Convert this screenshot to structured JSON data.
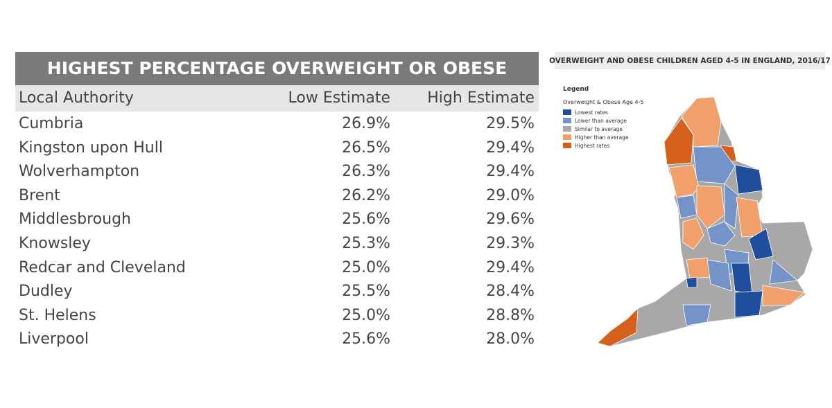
{
  "table": {
    "title": "HIGHEST PERCENTAGE OVERWEIGHT OR OBESE",
    "header": [
      "Local Authority",
      "Low Estimate",
      "High Estimate"
    ],
    "rows": [
      [
        "Cumbria",
        "26.9%",
        "29.5%"
      ],
      [
        "Kingston upon Hull",
        "26.5%",
        "29.4%"
      ],
      [
        "Wolverhampton",
        "26.3%",
        "29.4%"
      ],
      [
        "Brent",
        "26.2%",
        "29.0%"
      ],
      [
        "Middlesbrough",
        "25.6%",
        "29.6%"
      ],
      [
        "Knowsley",
        "25.3%",
        "29.3%"
      ],
      [
        "Redcar and Cleveland",
        "25.0%",
        "29.4%"
      ],
      [
        "Dudley",
        "25.5%",
        "28.4%"
      ],
      [
        "St. Helens",
        "25.0%",
        "28.8%"
      ],
      [
        "Liverpool",
        "25.6%",
        "28.0%"
      ]
    ]
  },
  "map": {
    "title": "OVERWEIGHT AND OBESE CHILDREN AGED 4-5 IN ENGLAND, 2016/17",
    "legend": {
      "title": "Legend",
      "subtitle": "Overweight & Obese Age 4-5",
      "items": [
        {
          "label": "Lowest rates",
          "color": "#1f4e9c"
        },
        {
          "label": "Lower than average",
          "color": "#7393c9"
        },
        {
          "label": "Similar to average",
          "color": "#a8a8a8"
        },
        {
          "label": "Higher than average",
          "color": "#f2a06b"
        },
        {
          "label": "Highest rates",
          "color": "#d4601c"
        }
      ]
    }
  }
}
